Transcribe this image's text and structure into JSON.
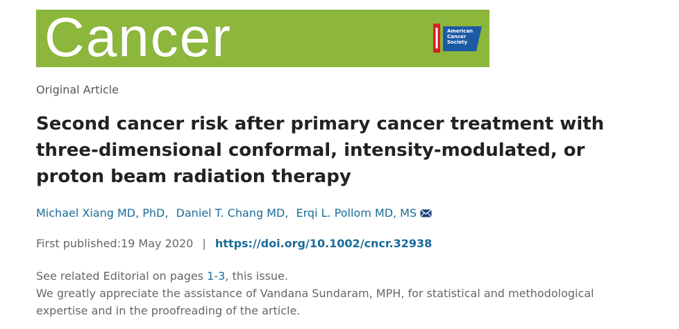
{
  "banner": {
    "journal": "Cancer",
    "logo_text": "American Cancer Society"
  },
  "article_type": "Original Article",
  "title": "Second cancer risk after primary cancer treatment with three-dimensional conformal, intensity-modulated, or proton beam radiation therapy",
  "authors": [
    "Michael Xiang MD, PhD,",
    "Daniel T. Chang MD,",
    "Erqi L. Pollom MD, MS"
  ],
  "publication": {
    "label": "First published:",
    "date": "19 May 2020",
    "separator": "|",
    "doi": "https://doi.org/10.1002/cncr.32938"
  },
  "notes": {
    "editorial_prefix": "See related Editorial on pages",
    "editorial_pages": "1-3",
    "editorial_suffix": ", this issue.",
    "acknowledgment": "We greatly appreciate the assistance of Vandana Sundaram, MPH, for statistical and methodological expertise and in the proofreading of the article."
  }
}
